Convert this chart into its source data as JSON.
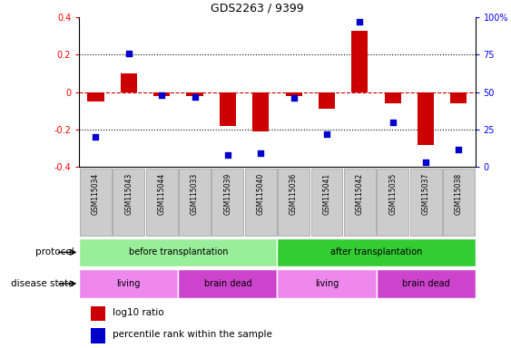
{
  "title": "GDS2263 / 9399",
  "samples": [
    "GSM115034",
    "GSM115043",
    "GSM115044",
    "GSM115033",
    "GSM115039",
    "GSM115040",
    "GSM115036",
    "GSM115041",
    "GSM115042",
    "GSM115035",
    "GSM115037",
    "GSM115038"
  ],
  "log10_ratio": [
    -0.05,
    0.1,
    -0.02,
    -0.02,
    -0.18,
    -0.21,
    -0.02,
    -0.09,
    0.33,
    -0.06,
    -0.28,
    -0.06
  ],
  "percentile_rank": [
    20,
    76,
    48,
    47,
    8,
    9,
    46,
    22,
    97,
    30,
    3,
    12
  ],
  "ylim_left": [
    -0.4,
    0.4
  ],
  "ylim_right": [
    0,
    100
  ],
  "bar_color": "#cc0000",
  "dot_color": "#0000cc",
  "zero_line_color": "#cc0000",
  "protocol_groups": [
    {
      "label": "before transplantation",
      "start": 0,
      "end": 6,
      "color": "#99ee99"
    },
    {
      "label": "after transplantation",
      "start": 6,
      "end": 12,
      "color": "#33cc33"
    }
  ],
  "disease_groups": [
    {
      "label": "living",
      "start": 0,
      "end": 3,
      "color": "#ee88ee"
    },
    {
      "label": "brain dead",
      "start": 3,
      "end": 6,
      "color": "#cc44cc"
    },
    {
      "label": "living",
      "start": 6,
      "end": 9,
      "color": "#ee88ee"
    },
    {
      "label": "brain dead",
      "start": 9,
      "end": 12,
      "color": "#cc44cc"
    }
  ],
  "protocol_label": "protocol",
  "disease_label": "disease state",
  "legend_red": "log10 ratio",
  "legend_blue": "percentile rank within the sample",
  "right_ytick_labels": [
    "0",
    "25",
    "50",
    "75",
    "100%"
  ],
  "right_ytick_values": [
    0,
    25,
    50,
    75,
    100
  ],
  "left_ytick_labels": [
    "-0.4",
    "-0.2",
    "0",
    "0.2",
    "0.4"
  ],
  "left_ytick_values": [
    -0.4,
    -0.2,
    0.0,
    0.2,
    0.4
  ],
  "sample_box_color": "#cccccc",
  "sample_box_edge": "#999999"
}
